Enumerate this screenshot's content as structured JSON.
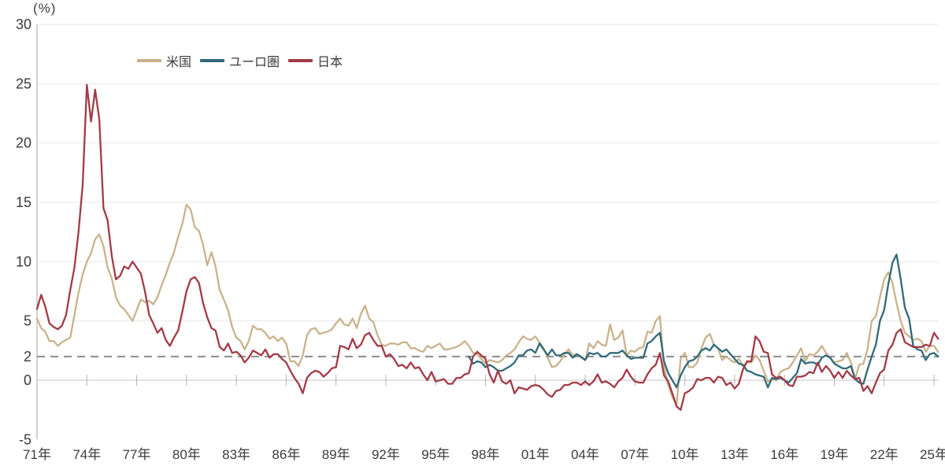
{
  "chart_data": {
    "type": "line",
    "title": "",
    "unit": "(%)",
    "ylabel": "(%)",
    "xlabel": "",
    "ylim": [
      -5,
      30
    ],
    "y_ticks": [
      30,
      25,
      20,
      15,
      10,
      5,
      2,
      0,
      -5
    ],
    "y_gridlines": [
      30,
      25,
      20,
      15,
      10,
      5
    ],
    "zero_line": 0,
    "reference_line": {
      "value": 2,
      "style": "dashed"
    },
    "x_tick_labels": [
      "71年",
      "74年",
      "77年",
      "80年",
      "83年",
      "86年",
      "89年",
      "92年",
      "95年",
      "98年",
      "01年",
      "04年",
      "07年",
      "10年",
      "13年",
      "16年",
      "19年",
      "22年",
      "25年"
    ],
    "x_tick_years": [
      1971,
      1974,
      1977,
      1980,
      1983,
      1986,
      1989,
      1992,
      1995,
      1998,
      2001,
      2004,
      2007,
      2010,
      2013,
      2016,
      2019,
      2022,
      2025
    ],
    "x_range": [
      1971,
      2025.25
    ],
    "frequency": "quarterly",
    "legend_position": "top-left-inset",
    "grid": "horizontal-only",
    "series": [
      {
        "name": "米国",
        "color": "#c9b38c",
        "start_year": 1971,
        "points_per_year": 4,
        "values": [
          5.2,
          4.4,
          4.1,
          3.3,
          3.3,
          2.9,
          3.2,
          3.4,
          3.6,
          5.5,
          7.4,
          8.9,
          10.0,
          10.7,
          11.9,
          12.3,
          11.3,
          9.5,
          8.6,
          7.0,
          6.3,
          6.0,
          5.5,
          5.0,
          5.9,
          6.8,
          6.6,
          6.7,
          6.4,
          7.0,
          8.0,
          8.9,
          9.9,
          10.8,
          12.1,
          13.2,
          14.8,
          14.4,
          12.9,
          12.6,
          11.4,
          9.7,
          10.8,
          9.6,
          7.6,
          6.8,
          5.9,
          4.5,
          3.6,
          3.3,
          2.6,
          3.3,
          4.6,
          4.3,
          4.3,
          4.0,
          3.5,
          3.7,
          3.3,
          3.6,
          3.1,
          1.6,
          1.6,
          1.2,
          2.1,
          3.8,
          4.3,
          4.4,
          3.9,
          4.0,
          4.1,
          4.3,
          4.8,
          5.2,
          4.7,
          4.6,
          5.2,
          4.4,
          5.6,
          6.3,
          5.2,
          4.9,
          3.8,
          3.0,
          2.9,
          3.1,
          3.1,
          3.0,
          3.2,
          3.2,
          2.7,
          2.7,
          2.5,
          2.4,
          2.9,
          2.7,
          2.9,
          3.1,
          2.6,
          2.6,
          2.7,
          2.8,
          3.0,
          3.3,
          2.9,
          2.3,
          2.2,
          1.8,
          1.4,
          1.7,
          1.6,
          1.5,
          1.7,
          2.1,
          2.3,
          2.6,
          3.2,
          3.7,
          3.5,
          3.4,
          3.7,
          3.2,
          2.7,
          1.9,
          1.1,
          1.2,
          1.6,
          2.2,
          2.6,
          2.1,
          2.2,
          1.9,
          1.7,
          3.1,
          2.7,
          3.3,
          3.0,
          2.9,
          4.7,
          3.4,
          3.6,
          4.2,
          2.1,
          2.5,
          2.4,
          2.7,
          2.8,
          4.1,
          4.0,
          5.0,
          5.4,
          1.1,
          -0.4,
          -1.4,
          -2.1,
          1.8,
          2.3,
          1.1,
          1.1,
          1.5,
          2.7,
          3.6,
          3.9,
          3.0,
          2.7,
          1.7,
          2.0,
          1.7,
          1.5,
          1.8,
          1.2,
          1.5,
          1.5,
          2.1,
          1.7,
          0.8,
          -0.1,
          0.1,
          0.0,
          0.7,
          0.9,
          1.0,
          1.5,
          2.1,
          2.7,
          1.6,
          2.2,
          2.1,
          2.4,
          2.9,
          2.3,
          1.9,
          1.5,
          1.6,
          1.7,
          2.3,
          1.5,
          0.1,
          1.3,
          1.4,
          2.6,
          5.0,
          5.4,
          7.0,
          8.5,
          9.1,
          8.2,
          6.5,
          5.0,
          4.0,
          3.7,
          3.4,
          3.5,
          3.3,
          2.4,
          2.9,
          2.9,
          2.4
        ]
      },
      {
        "name": "ユーロ圏",
        "color": "#316a79",
        "start_year": 1997,
        "points_per_year": 4,
        "values": [
          2.0,
          1.4,
          1.6,
          1.5,
          1.1,
          1.3,
          1.1,
          0.8,
          0.8,
          1.0,
          1.2,
          1.5,
          2.1,
          2.1,
          2.5,
          2.6,
          2.3,
          3.1,
          2.6,
          2.1,
          2.6,
          2.1,
          2.1,
          2.3,
          2.3,
          1.9,
          2.2,
          2.0,
          1.7,
          2.3,
          2.2,
          2.3,
          2.0,
          2.0,
          2.3,
          2.3,
          2.3,
          2.5,
          2.1,
          1.8,
          1.9,
          1.9,
          1.9,
          3.1,
          3.3,
          3.7,
          4.0,
          1.6,
          0.6,
          0.0,
          -0.6,
          0.4,
          1.1,
          1.6,
          1.7,
          2.0,
          2.5,
          2.7,
          2.5,
          3.0,
          2.7,
          2.4,
          2.6,
          2.2,
          1.8,
          1.4,
          1.3,
          0.8,
          0.7,
          0.5,
          0.4,
          0.3,
          -0.6,
          0.2,
          0.1,
          0.2,
          0.0,
          -0.2,
          0.2,
          0.6,
          1.8,
          1.4,
          1.5,
          1.5,
          1.3,
          1.9,
          2.1,
          1.9,
          1.4,
          1.2,
          1.0,
          1.0,
          1.2,
          0.1,
          -0.2,
          -0.3,
          0.9,
          2.0,
          3.0,
          5.0,
          5.9,
          8.1,
          9.9,
          10.6,
          8.5,
          6.1,
          5.2,
          2.9,
          2.6,
          2.5,
          1.7,
          2.2,
          2.3,
          2.0
        ]
      },
      {
        "name": "日本",
        "color": "#a23b47",
        "start_year": 1971,
        "points_per_year": 4,
        "values": [
          6.0,
          7.2,
          6.2,
          4.8,
          4.5,
          4.3,
          4.6,
          5.5,
          7.6,
          9.5,
          12.5,
          16.5,
          24.9,
          21.8,
          24.5,
          22.0,
          14.5,
          13.5,
          10.5,
          8.5,
          8.8,
          9.6,
          9.4,
          10.0,
          9.5,
          9.0,
          7.5,
          5.5,
          4.8,
          4.0,
          4.4,
          3.4,
          2.9,
          3.6,
          4.2,
          5.8,
          7.5,
          8.5,
          8.7,
          8.2,
          6.5,
          5.3,
          4.4,
          4.2,
          2.8,
          2.5,
          3.1,
          2.3,
          2.4,
          2.1,
          1.5,
          1.9,
          2.5,
          2.3,
          2.1,
          2.6,
          1.9,
          2.2,
          2.2,
          1.8,
          1.5,
          0.8,
          0.2,
          -0.3,
          -1.1,
          0.2,
          0.6,
          0.8,
          0.7,
          0.3,
          0.6,
          1.0,
          1.1,
          2.9,
          2.8,
          2.6,
          3.5,
          2.7,
          3.0,
          3.8,
          4.0,
          3.4,
          2.9,
          2.9,
          2.0,
          2.2,
          1.8,
          1.2,
          1.3,
          1.0,
          1.5,
          1.0,
          1.1,
          0.5,
          0.0,
          0.7,
          -0.1,
          0.0,
          0.1,
          -0.3,
          -0.3,
          0.2,
          0.2,
          0.5,
          0.6,
          2.0,
          2.4,
          2.1,
          1.8,
          0.5,
          -0.2,
          0.8,
          -0.1,
          -0.3,
          0.0,
          -1.1,
          -0.6,
          -0.7,
          -0.8,
          -0.5,
          -0.4,
          -0.5,
          -0.8,
          -1.2,
          -1.4,
          -0.9,
          -0.8,
          -0.4,
          -0.4,
          -0.2,
          -0.2,
          -0.4,
          -0.1,
          -0.4,
          -0.1,
          0.5,
          -0.2,
          -0.1,
          -0.3,
          -0.6,
          -0.1,
          0.2,
          0.9,
          0.3,
          -0.1,
          -0.2,
          -0.2,
          0.5,
          1.0,
          1.3,
          2.3,
          0.4,
          -0.1,
          -1.1,
          -2.2,
          -2.5,
          -1.1,
          -0.9,
          -0.6,
          0.1,
          0.0,
          0.2,
          0.2,
          -0.2,
          0.3,
          0.2,
          -0.4,
          -0.2,
          -0.7,
          -0.3,
          0.9,
          1.6,
          1.6,
          3.7,
          3.3,
          2.4,
          2.3,
          0.5,
          0.2,
          0.3,
          0.0,
          -0.4,
          -0.5,
          0.3,
          0.3,
          0.4,
          0.7,
          0.6,
          1.5,
          0.7,
          1.2,
          0.8,
          0.2,
          0.7,
          0.2,
          0.8,
          0.4,
          0.1,
          0.2,
          -0.9,
          -0.5,
          -1.1,
          -0.2,
          0.6,
          0.9,
          2.5,
          3.0,
          4.0,
          4.3,
          3.2,
          3.0,
          2.8,
          2.8,
          2.8,
          3.0,
          2.9,
          4.0,
          3.5
        ]
      }
    ]
  },
  "style": {
    "grid_color": "#e9e9e9",
    "zero_line_color": "#c4c4c4",
    "axis_color": "#b3b3b3",
    "tick_color": "#b3b3b3",
    "dashed_line_color": "#8c8c8c",
    "text_color": "#3b3b3b"
  }
}
